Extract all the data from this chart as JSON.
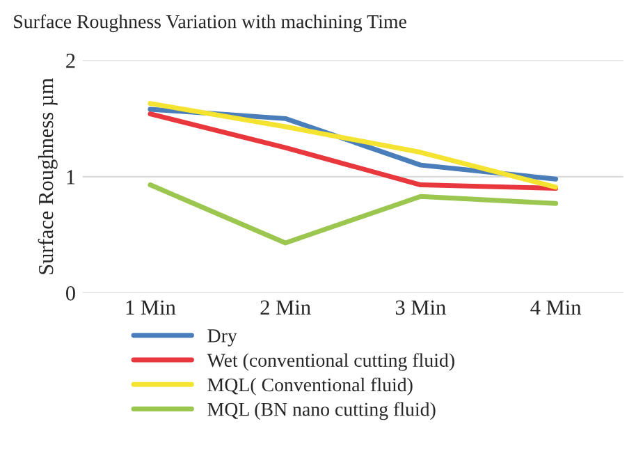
{
  "chart_data": {
    "type": "line",
    "title": "Surface Roughness Variation with machining Time",
    "ylabel": "Surface Roughness µm",
    "categories": [
      "1 Min",
      "2 Min",
      "3 Min",
      "4 Min"
    ],
    "series": [
      {
        "name": "Dry",
        "color": "#4a7ebb",
        "values": [
          1.58,
          1.5,
          1.1,
          0.98
        ]
      },
      {
        "name": "Wet (conventional cutting fluid)",
        "color": "#e8383d",
        "values": [
          1.54,
          1.25,
          0.93,
          0.9
        ]
      },
      {
        "name": "MQL( Conventional fluid)",
        "color": "#f5e332",
        "values": [
          1.63,
          1.43,
          1.21,
          0.91
        ]
      },
      {
        "name": "MQL (BN nano cutting fluid)",
        "color": "#9bc750",
        "values": [
          0.93,
          0.43,
          0.83,
          0.77
        ]
      }
    ],
    "ylim": [
      0,
      2
    ],
    "yticks": [
      0,
      1,
      2
    ],
    "grid": "y",
    "legend": "bottom",
    "marker": "none",
    "line_style": "solid"
  }
}
